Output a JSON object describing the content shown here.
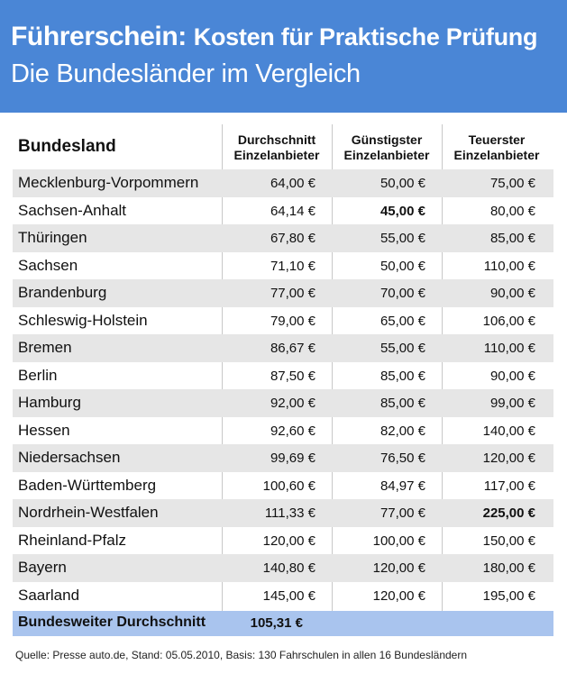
{
  "header": {
    "title_part1": "Führerschein:",
    "title_part2": "Kosten für Praktische Prüfung",
    "subtitle": "Die Bundesländer im Vergleich"
  },
  "table": {
    "col_bundesland": "Bundesland",
    "col_avg_line1": "Durchschnitt",
    "col_avg_line2": "Einzelanbieter",
    "col_min_line1": "Günstigster",
    "col_min_line2": "Einzelanbieter",
    "col_max_line1": "Teuerster",
    "col_max_line2": "Einzelanbieter",
    "rows": [
      {
        "land": "Mecklenburg-Vorpommern",
        "avg": "64,00 €",
        "min": "50,00 €",
        "max": "75,00 €"
      },
      {
        "land": "Sachsen-Anhalt",
        "avg": "64,14 €",
        "min": "45,00 €",
        "max": "80,00 €"
      },
      {
        "land": "Thüringen",
        "avg": "67,80 €",
        "min": "55,00 €",
        "max": "85,00 €"
      },
      {
        "land": "Sachsen",
        "avg": "71,10 €",
        "min": "50,00 €",
        "max": "110,00 €"
      },
      {
        "land": "Brandenburg",
        "avg": "77,00 €",
        "min": "70,00 €",
        "max": "90,00 €"
      },
      {
        "land": "Schleswig-Holstein",
        "avg": "79,00 €",
        "min": "65,00 €",
        "max": "106,00 €"
      },
      {
        "land": "Bremen",
        "avg": "86,67 €",
        "min": "55,00 €",
        "max": "110,00 €"
      },
      {
        "land": "Berlin",
        "avg": "87,50 €",
        "min": "85,00 €",
        "max": "90,00 €"
      },
      {
        "land": "Hamburg",
        "avg": "92,00 €",
        "min": "85,00 €",
        "max": "99,00 €"
      },
      {
        "land": "Hessen",
        "avg": "92,60 €",
        "min": "82,00 €",
        "max": "140,00 €"
      },
      {
        "land": "Niedersachsen",
        "avg": "99,69 €",
        "min": "76,50 €",
        "max": "120,00 €"
      },
      {
        "land": "Baden-Württemberg",
        "avg": "100,60 €",
        "min": "84,97 €",
        "max": "117,00 €"
      },
      {
        "land": "Nordrhein-Westfalen",
        "avg": "111,33 €",
        "min": "77,00 €",
        "max": "225,00 €"
      },
      {
        "land": "Rheinland-Pfalz",
        "avg": "120,00 €",
        "min": "100,00 €",
        "max": "150,00 €"
      },
      {
        "land": "Bayern",
        "avg": "140,80 €",
        "min": "120,00 €",
        "max": "180,00 €"
      },
      {
        "land": "Saarland",
        "avg": "145,00 €",
        "min": "120,00 €",
        "max": "195,00 €"
      }
    ],
    "total_label": "Bundesweiter Durchschnitt",
    "total_value": "105,31 €"
  },
  "source": "Quelle: Presse auto.de, Stand: 05.05.2010, Basis: 130 Fahrschulen in allen 16 Bundesländern"
}
